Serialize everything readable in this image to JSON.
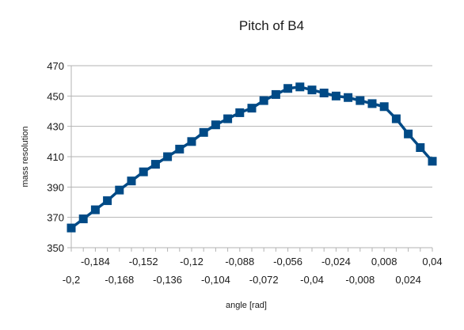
{
  "chart_data": {
    "type": "line",
    "title": "Pitch of B4",
    "xlabel": "angle [rad]",
    "ylabel": "mass resolution",
    "xlim": [
      -0.2,
      0.04
    ],
    "ylim": [
      350,
      470
    ],
    "grid": true,
    "legend": "none",
    "colors": {
      "series": "#004a86",
      "grid": "#b3b3b3",
      "axis": "#b3b3b3"
    },
    "y_ticks": [
      {
        "value": 350,
        "label": "350"
      },
      {
        "value": 370,
        "label": "370"
      },
      {
        "value": 390,
        "label": "390"
      },
      {
        "value": 410,
        "label": "410"
      },
      {
        "value": 430,
        "label": "430"
      },
      {
        "value": 450,
        "label": "450"
      },
      {
        "value": 470,
        "label": "470"
      }
    ],
    "x_ticks_upper": [
      {
        "value": -0.184,
        "label": "-0,184"
      },
      {
        "value": -0.152,
        "label": "-0,152"
      },
      {
        "value": -0.12,
        "label": "-0,12"
      },
      {
        "value": -0.088,
        "label": "-0,088"
      },
      {
        "value": -0.056,
        "label": "-0,056"
      },
      {
        "value": -0.024,
        "label": "-0,024"
      },
      {
        "value": 0.008,
        "label": "0,008"
      },
      {
        "value": 0.04,
        "label": "0,04"
      }
    ],
    "x_ticks_lower": [
      {
        "value": -0.2,
        "label": "-0,2"
      },
      {
        "value": -0.168,
        "label": "-0,168"
      },
      {
        "value": -0.136,
        "label": "-0,136"
      },
      {
        "value": -0.104,
        "label": "-0,104"
      },
      {
        "value": -0.072,
        "label": "-0,072"
      },
      {
        "value": -0.04,
        "label": "-0,04"
      },
      {
        "value": -0.008,
        "label": "-0,008"
      },
      {
        "value": 0.024,
        "label": "0,024"
      }
    ],
    "x": [
      -0.2,
      -0.192,
      -0.184,
      -0.176,
      -0.168,
      -0.16,
      -0.152,
      -0.144,
      -0.136,
      -0.128,
      -0.12,
      -0.112,
      -0.104,
      -0.096,
      -0.088,
      -0.08,
      -0.072,
      -0.064,
      -0.056,
      -0.048,
      -0.04,
      -0.032,
      -0.024,
      -0.016,
      -0.008,
      0.0,
      0.008,
      0.016,
      0.024,
      0.032,
      0.04
    ],
    "series": [
      {
        "marker": "square",
        "values": [
          363,
          369,
          375,
          381,
          388,
          394,
          400,
          405,
          410,
          415,
          420,
          426,
          431,
          435,
          439,
          442,
          447,
          451,
          455,
          456,
          454,
          452,
          450,
          449,
          447,
          445,
          443,
          435,
          425,
          416,
          407
        ]
      }
    ]
  }
}
